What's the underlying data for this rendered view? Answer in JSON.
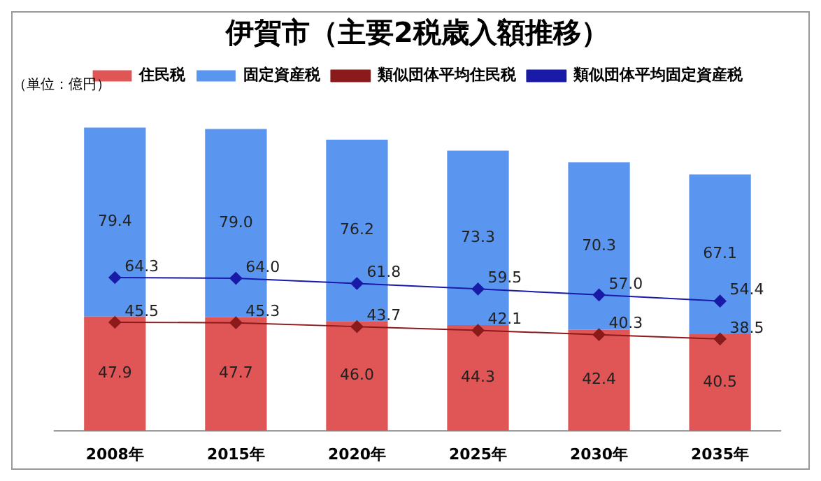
{
  "chart_data": {
    "type": "bar",
    "title": "伊賀市（主要2税歳入額推移）",
    "stacked": true,
    "legend": "top",
    "grid": false,
    "tick_labels": "x",
    "categories": [
      "2008年",
      "2015年",
      "2020年",
      "2025年",
      "2030年",
      "2035年"
    ],
    "annotations": [
      "（単位：億円）"
    ],
    "series": [
      {
        "name": "住民税",
        "color": "#e05656",
        "values": [
          47.9,
          47.7,
          46.0,
          44.3,
          42.4,
          40.5
        ],
        "value_labels": [
          "47.9",
          "47.7",
          "46.0",
          "44.3",
          "42.4",
          "40.5"
        ]
      },
      {
        "name": "固定資産税",
        "color": "#5a96f0",
        "values": [
          79.4,
          79.0,
          76.2,
          73.3,
          70.3,
          67.1
        ],
        "value_labels": [
          "79.4",
          "79.0",
          "76.2",
          "73.3",
          "70.3",
          "67.1"
        ]
      },
      {
        "name": "類似団体平均住民税",
        "type": "line",
        "color": "#8b1a1a",
        "marker": "diamond",
        "values": [
          45.5,
          45.3,
          43.7,
          42.1,
          40.3,
          38.5
        ],
        "value_labels": [
          "45.5",
          "45.3",
          "43.7",
          "42.1",
          "40.3",
          "38.5"
        ]
      },
      {
        "name": "類似団体平均固定資産税",
        "type": "line",
        "color": "#1a1aa8",
        "marker": "diamond",
        "values": [
          64.3,
          64.0,
          61.8,
          59.5,
          57.0,
          54.4
        ],
        "value_labels": [
          "64.3",
          "64.0",
          "61.8",
          "59.5",
          "57.0",
          "54.4"
        ]
      }
    ]
  }
}
